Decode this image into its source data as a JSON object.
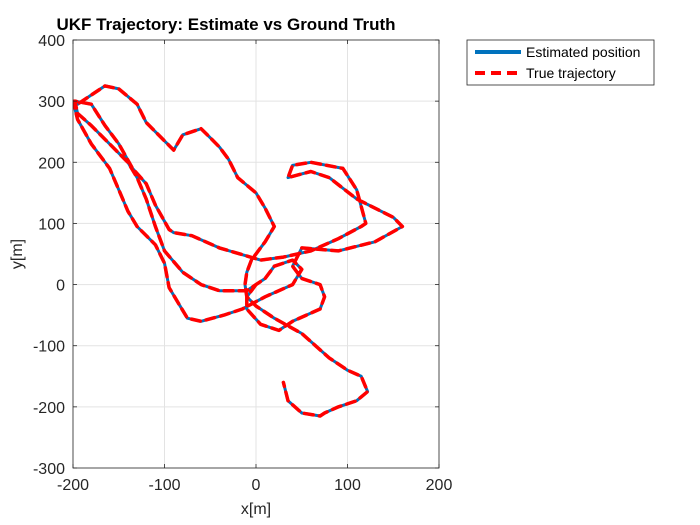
{
  "chart_data": {
    "type": "line",
    "title": "UKF Trajectory: Estimate vs Ground Truth",
    "xlabel": "x[m]",
    "ylabel": "y[m]",
    "xlim": [
      -200,
      200
    ],
    "ylim": [
      -300,
      400
    ],
    "xticks": [
      -200,
      -100,
      0,
      100,
      200
    ],
    "yticks": [
      -300,
      -200,
      -100,
      0,
      100,
      200,
      300,
      400
    ],
    "grid": true,
    "legend_position": "outside-top-right",
    "series": [
      {
        "name": "Estimated position",
        "color": "#0072BD",
        "style": "solid",
        "x": [
          0,
          -10,
          -10,
          5,
          25,
          40,
          70,
          75,
          70,
          50,
          40,
          50,
          90,
          130,
          160,
          150,
          110,
          80,
          60,
          35,
          40,
          60,
          95,
          110,
          120,
          115,
          90,
          60,
          30,
          5,
          -40,
          -70,
          -90,
          -95,
          -110,
          -120,
          -135,
          -150,
          -165,
          -180,
          -198,
          -195,
          -180,
          -160,
          -140,
          -130,
          -120,
          -110,
          -100,
          -80,
          -60,
          -40,
          -10,
          10,
          20,
          40,
          50,
          40,
          10,
          -15,
          -35,
          -60,
          -75,
          -85,
          -95,
          -100,
          -110,
          -130,
          -140,
          -150,
          -160,
          -180,
          -195,
          -200,
          -195,
          -180,
          -165,
          -150,
          -130,
          -120,
          -100,
          -90,
          -80,
          -60,
          -50,
          -40,
          -30,
          -20,
          0,
          10,
          20,
          10,
          -5,
          -10,
          -12,
          -10,
          0,
          20,
          50,
          80,
          100,
          115,
          122,
          110,
          90,
          75,
          70,
          50,
          35,
          30
        ],
        "y": [
          0,
          -20,
          -40,
          -65,
          -75,
          -60,
          -40,
          -20,
          0,
          10,
          30,
          60,
          55,
          70,
          95,
          110,
          140,
          175,
          185,
          175,
          195,
          200,
          190,
          155,
          100,
          95,
          75,
          55,
          45,
          40,
          60,
          80,
          85,
          90,
          130,
          165,
          190,
          230,
          260,
          295,
          300,
          280,
          260,
          230,
          200,
          175,
          140,
          95,
          55,
          20,
          0,
          -10,
          -10,
          10,
          30,
          40,
          25,
          0,
          -20,
          -40,
          -50,
          -60,
          -55,
          -30,
          -5,
          35,
          65,
          95,
          120,
          155,
          190,
          230,
          270,
          300,
          295,
          310,
          325,
          320,
          295,
          265,
          235,
          220,
          245,
          255,
          240,
          225,
          205,
          175,
          150,
          125,
          95,
          70,
          40,
          20,
          0,
          -20,
          -35,
          -55,
          -80,
          -120,
          -140,
          -150,
          -175,
          -190,
          -200,
          -210,
          -215,
          -210,
          -190,
          -160
        ],
        "note": ""
      },
      {
        "name": "True trajectory",
        "color": "#FF0000",
        "style": "dashed",
        "x": [
          0,
          -10,
          -10,
          5,
          25,
          40,
          70,
          75,
          70,
          50,
          40,
          50,
          90,
          130,
          160,
          150,
          110,
          80,
          60,
          35,
          40,
          60,
          95,
          110,
          120,
          115,
          90,
          60,
          30,
          5,
          -40,
          -70,
          -90,
          -95,
          -110,
          -120,
          -135,
          -150,
          -165,
          -180,
          -198,
          -195,
          -180,
          -160,
          -140,
          -130,
          -120,
          -110,
          -100,
          -80,
          -60,
          -40,
          -10,
          10,
          20,
          40,
          50,
          40,
          10,
          -15,
          -35,
          -60,
          -75,
          -85,
          -95,
          -100,
          -110,
          -130,
          -140,
          -150,
          -160,
          -180,
          -195,
          -200,
          -195,
          -180,
          -165,
          -150,
          -130,
          -120,
          -100,
          -90,
          -80,
          -60,
          -50,
          -40,
          -30,
          -20,
          0,
          10,
          20,
          10,
          -5,
          -10,
          -12,
          -10,
          0,
          20,
          50,
          80,
          100,
          115,
          122,
          110,
          90,
          75,
          70,
          50,
          35,
          30
        ],
        "y": [
          0,
          -20,
          -40,
          -65,
          -75,
          -60,
          -40,
          -20,
          0,
          10,
          30,
          60,
          55,
          70,
          95,
          110,
          140,
          175,
          185,
          175,
          195,
          200,
          190,
          155,
          100,
          95,
          75,
          55,
          45,
          40,
          60,
          80,
          85,
          90,
          130,
          165,
          190,
          230,
          260,
          295,
          300,
          280,
          260,
          230,
          200,
          175,
          140,
          95,
          55,
          20,
          0,
          -10,
          -10,
          10,
          30,
          40,
          25,
          0,
          -20,
          -40,
          -50,
          -60,
          -55,
          -30,
          -5,
          35,
          65,
          95,
          120,
          155,
          190,
          230,
          270,
          300,
          295,
          310,
          325,
          320,
          295,
          265,
          235,
          220,
          245,
          255,
          240,
          225,
          205,
          175,
          150,
          125,
          95,
          70,
          40,
          20,
          0,
          -20,
          -35,
          -55,
          -80,
          -120,
          -140,
          -150,
          -175,
          -190,
          -200,
          -210,
          -215,
          -210,
          -190,
          -160
        ],
        "note": ""
      }
    ]
  }
}
